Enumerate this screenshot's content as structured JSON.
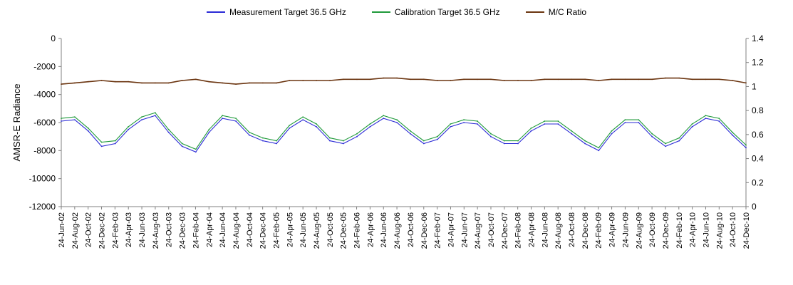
{
  "chart_data": {
    "type": "line",
    "title": "",
    "ylabel": "AMSR-E Radiance",
    "y2label": "",
    "ylim": [
      -12000,
      0
    ],
    "y2lim": [
      0,
      1.4
    ],
    "yticks": [
      0,
      -2000,
      -4000,
      -6000,
      -8000,
      -10000,
      -12000
    ],
    "y2ticks": [
      1.4,
      1.2,
      1,
      0.8,
      0.6,
      0.4,
      0.2,
      0
    ],
    "x_start": "24-Jun-02",
    "x_end": "24-Dec-10",
    "x_tick_labels": [
      "24-Jun-02",
      "24-Aug-02",
      "24-Oct-02",
      "24-Dec-02",
      "24-Feb-03",
      "24-Apr-03",
      "24-Jun-03",
      "24-Aug-03",
      "24-Oct-03",
      "24-Dec-03",
      "24-Feb-04",
      "24-Apr-04",
      "24-Jun-04",
      "24-Aug-04",
      "24-Oct-04",
      "24-Dec-04",
      "24-Feb-05",
      "24-Apr-05",
      "24-Jun-05",
      "24-Aug-05",
      "24-Oct-05",
      "24-Dec-05",
      "24-Feb-06",
      "24-Apr-06",
      "24-Jun-06",
      "24-Aug-06",
      "24-Oct-06",
      "24-Dec-06",
      "24-Feb-07",
      "24-Apr-07",
      "24-Jun-07",
      "24-Aug-07",
      "24-Oct-07",
      "24-Dec-07",
      "24-Feb-08",
      "24-Apr-08",
      "24-Jun-08",
      "24-Aug-08",
      "24-Oct-08",
      "24-Dec-08",
      "24-Feb-09",
      "24-Apr-09",
      "24-Jun-09",
      "24-Aug-09",
      "24-Oct-09",
      "24-Dec-09",
      "24-Feb-10",
      "24-Apr-10",
      "24-Jun-10",
      "24-Aug-10",
      "24-Oct-10",
      "24-Dec-10"
    ],
    "grid": false,
    "legend_position": "top-center",
    "series": [
      {
        "name": "Measurement Target 36.5 GHz",
        "color": "#2b2bd6",
        "axis": "left",
        "x": [
          "24-Jun-02",
          "24-Aug-02",
          "24-Oct-02",
          "24-Dec-02",
          "24-Feb-03",
          "24-Apr-03",
          "24-Jun-03",
          "24-Aug-03",
          "24-Oct-03",
          "24-Dec-03",
          "24-Feb-04",
          "24-Apr-04",
          "24-Jun-04",
          "24-Aug-04",
          "24-Oct-04",
          "24-Dec-04",
          "24-Feb-05",
          "24-Apr-05",
          "24-Jun-05",
          "24-Aug-05",
          "24-Oct-05",
          "24-Dec-05",
          "24-Feb-06",
          "24-Apr-06",
          "24-Jun-06",
          "24-Aug-06",
          "24-Oct-06",
          "24-Dec-06",
          "24-Feb-07",
          "24-Apr-07",
          "24-Jun-07",
          "24-Aug-07",
          "24-Oct-07",
          "24-Dec-07",
          "24-Feb-08",
          "24-Apr-08",
          "24-Jun-08",
          "24-Aug-08",
          "24-Oct-08",
          "24-Dec-08",
          "24-Feb-09",
          "24-Apr-09",
          "24-Jun-09",
          "24-Aug-09",
          "24-Oct-09",
          "24-Dec-09",
          "24-Feb-10",
          "24-Apr-10",
          "24-Jun-10",
          "24-Aug-10",
          "24-Oct-10",
          "24-Dec-10"
        ],
        "y": [
          -5900,
          -5800,
          -6600,
          -7700,
          -7500,
          -6500,
          -5800,
          -5500,
          -6700,
          -7700,
          -8100,
          -6700,
          -5700,
          -5900,
          -6900,
          -7300,
          -7500,
          -6400,
          -5800,
          -6300,
          -7300,
          -7500,
          -7000,
          -6300,
          -5700,
          -6000,
          -6800,
          -7500,
          -7200,
          -6300,
          -6000,
          -6100,
          -7000,
          -7500,
          -7500,
          -6600,
          -6100,
          -6100,
          -6800,
          -7500,
          -8000,
          -6800,
          -6000,
          -6000,
          -7000,
          -7700,
          -7300,
          -6300,
          -5700,
          -5900,
          -6900,
          -7800
        ]
      },
      {
        "name": "Calibration Target 36.5 GHz",
        "color": "#1f9a3a",
        "axis": "left",
        "x": [
          "24-Jun-02",
          "24-Aug-02",
          "24-Oct-02",
          "24-Dec-02",
          "24-Feb-03",
          "24-Apr-03",
          "24-Jun-03",
          "24-Aug-03",
          "24-Oct-03",
          "24-Dec-03",
          "24-Feb-04",
          "24-Apr-04",
          "24-Jun-04",
          "24-Aug-04",
          "24-Oct-04",
          "24-Dec-04",
          "24-Feb-05",
          "24-Apr-05",
          "24-Jun-05",
          "24-Aug-05",
          "24-Oct-05",
          "24-Dec-05",
          "24-Feb-06",
          "24-Apr-06",
          "24-Jun-06",
          "24-Aug-06",
          "24-Oct-06",
          "24-Dec-06",
          "24-Feb-07",
          "24-Apr-07",
          "24-Jun-07",
          "24-Aug-07",
          "24-Oct-07",
          "24-Dec-07",
          "24-Feb-08",
          "24-Apr-08",
          "24-Jun-08",
          "24-Aug-08",
          "24-Oct-08",
          "24-Dec-08",
          "24-Feb-09",
          "24-Apr-09",
          "24-Jun-09",
          "24-Aug-09",
          "24-Oct-09",
          "24-Dec-09",
          "24-Feb-10",
          "24-Apr-10",
          "24-Jun-10",
          "24-Aug-10",
          "24-Oct-10",
          "24-Dec-10"
        ],
        "y": [
          -5700,
          -5600,
          -6400,
          -7400,
          -7300,
          -6300,
          -5600,
          -5300,
          -6500,
          -7500,
          -7900,
          -6500,
          -5500,
          -5700,
          -6700,
          -7100,
          -7300,
          -6200,
          -5600,
          -6100,
          -7100,
          -7300,
          -6800,
          -6100,
          -5500,
          -5800,
          -6600,
          -7300,
          -7000,
          -6100,
          -5800,
          -5900,
          -6800,
          -7300,
          -7300,
          -6400,
          -5900,
          -5900,
          -6600,
          -7300,
          -7800,
          -6600,
          -5800,
          -5800,
          -6800,
          -7500,
          -7100,
          -6100,
          -5500,
          -5700,
          -6700,
          -7600
        ]
      },
      {
        "name": "M/C Ratio",
        "color": "#6b3510",
        "axis": "right",
        "x": [
          "24-Jun-02",
          "24-Aug-02",
          "24-Oct-02",
          "24-Dec-02",
          "24-Feb-03",
          "24-Apr-03",
          "24-Jun-03",
          "24-Aug-03",
          "24-Oct-03",
          "24-Dec-03",
          "24-Feb-04",
          "24-Apr-04",
          "24-Jun-04",
          "24-Aug-04",
          "24-Oct-04",
          "24-Dec-04",
          "24-Feb-05",
          "24-Apr-05",
          "24-Jun-05",
          "24-Aug-05",
          "24-Oct-05",
          "24-Dec-05",
          "24-Feb-06",
          "24-Apr-06",
          "24-Jun-06",
          "24-Aug-06",
          "24-Oct-06",
          "24-Dec-06",
          "24-Feb-07",
          "24-Apr-07",
          "24-Jun-07",
          "24-Aug-07",
          "24-Oct-07",
          "24-Dec-07",
          "24-Feb-08",
          "24-Apr-08",
          "24-Jun-08",
          "24-Aug-08",
          "24-Oct-08",
          "24-Dec-08",
          "24-Feb-09",
          "24-Apr-09",
          "24-Jun-09",
          "24-Aug-09",
          "24-Oct-09",
          "24-Dec-09",
          "24-Feb-10",
          "24-Apr-10",
          "24-Jun-10",
          "24-Aug-10",
          "24-Oct-10",
          "24-Dec-10"
        ],
        "y": [
          1.02,
          1.03,
          1.04,
          1.05,
          1.04,
          1.04,
          1.03,
          1.03,
          1.03,
          1.05,
          1.06,
          1.04,
          1.03,
          1.02,
          1.03,
          1.03,
          1.03,
          1.05,
          1.05,
          1.05,
          1.05,
          1.06,
          1.06,
          1.06,
          1.07,
          1.07,
          1.06,
          1.06,
          1.05,
          1.05,
          1.06,
          1.06,
          1.06,
          1.05,
          1.05,
          1.05,
          1.06,
          1.06,
          1.06,
          1.06,
          1.05,
          1.06,
          1.06,
          1.06,
          1.06,
          1.07,
          1.07,
          1.06,
          1.06,
          1.06,
          1.05,
          1.03
        ]
      }
    ]
  }
}
